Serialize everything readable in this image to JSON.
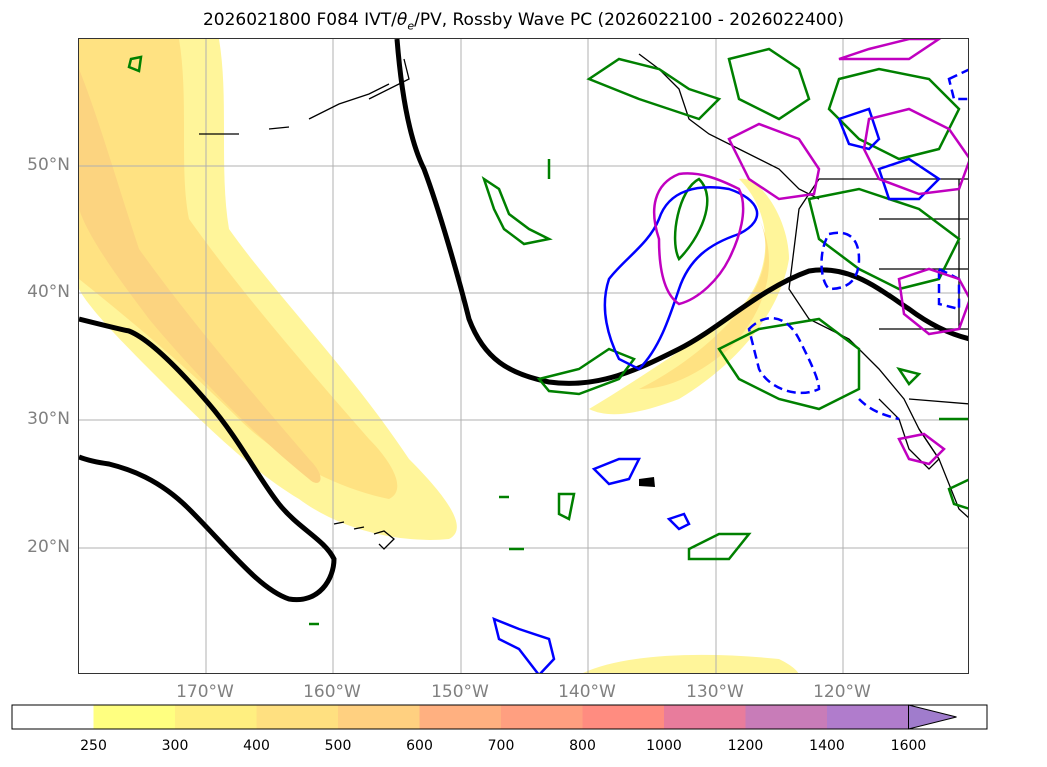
{
  "title_prefix": "2026021800 F084 IVT/",
  "title_theta": "θ",
  "title_sub": "e",
  "title_suffix": "/PV, Rossby Wave PC (2026022100 - 2026022400)",
  "lat_labels": [
    "50°N",
    "40°N",
    "30°N",
    "20°N"
  ],
  "lon_labels": [
    "170°W",
    "160°W",
    "150°W",
    "140°W",
    "130°W",
    "120°W"
  ],
  "colorbar": {
    "ticks": [
      "250",
      "300",
      "400",
      "500",
      "600",
      "700",
      "800",
      "1000",
      "1200",
      "1400",
      "1600"
    ],
    "colors": [
      "#ffffff",
      "#ffff80",
      "#ffef80",
      "#ffe080",
      "#ffd080",
      "#ffb080",
      "#ff9f80",
      "#ff8c80",
      "#e87c9c",
      "#c87cb8",
      "#b07ccc",
      "#a07ccc"
    ],
    "extend": "max"
  },
  "colors": {
    "ivt_light": "#fff59a",
    "ivt_mid": "#ffe282",
    "ivt_dark": "#fcd480",
    "theta_contour": "#000000",
    "pv_positive": "#008000",
    "pv_negative": "#0000ff",
    "rossby_pc": "#c000c0"
  }
}
